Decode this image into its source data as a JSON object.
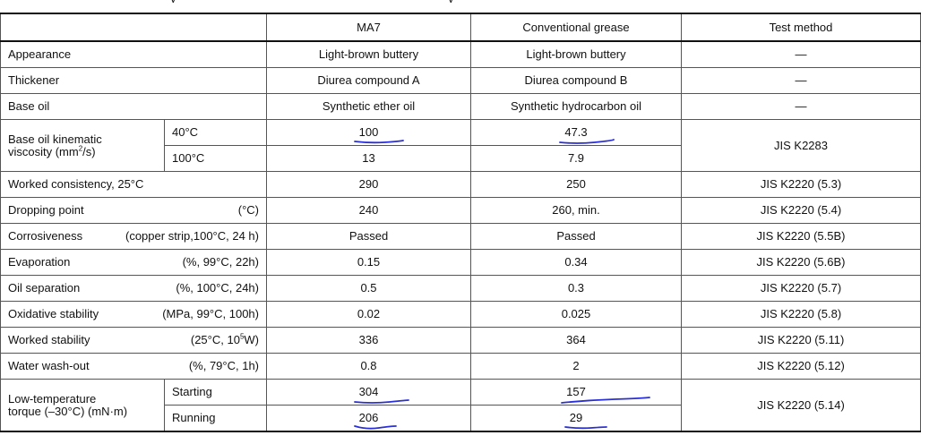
{
  "header_fragment": "y",
  "header_fragment_2": "y",
  "columns": {
    "ma7": "MA7",
    "conventional": "Conventional grease",
    "method": "Test method"
  },
  "rows": {
    "appearance": {
      "label": "Appearance",
      "ma7": "Light-brown buttery",
      "conv": "Light-brown buttery",
      "method": "—"
    },
    "thickener": {
      "label": "Thickener",
      "ma7": "Diurea compound A",
      "conv": "Diurea compound B",
      "method": "—"
    },
    "base_oil": {
      "label": "Base oil",
      "ma7": "Synthetic ether oil",
      "conv": "Synthetic hydrocarbon oil",
      "method": "—"
    },
    "viscosity": {
      "label_line1": "Base oil kinematic",
      "label_line2_pre": "viscosity (mm",
      "label_line2_sup": "2",
      "label_line2_post": "/s)",
      "sub1": "40°C",
      "ma7_1": "100",
      "conv_1": "47.3",
      "sub2": "100°C",
      "ma7_2": "13",
      "conv_2": "7.9",
      "method": "JIS K2283"
    },
    "worked_consistency": {
      "label": "Worked consistency, 25°C",
      "ma7": "290",
      "conv": "250",
      "method": "JIS K2220 (5.3)"
    },
    "dropping_point": {
      "label": "Dropping point",
      "cond": "(°C)",
      "ma7": "240",
      "conv": "260, min.",
      "method": "JIS K2220 (5.4)"
    },
    "corrosiveness": {
      "label": "Corrosiveness",
      "cond": "(copper strip,100°C, 24 h)",
      "ma7": "Passed",
      "conv": "Passed",
      "method": "JIS K2220 (5.5B)"
    },
    "evaporation": {
      "label": "Evaporation",
      "cond": "(%,  99°C, 22h)",
      "ma7": "0.15",
      "conv": "0.34",
      "method": "JIS K2220 (5.6B)"
    },
    "oil_separation": {
      "label": "Oil separation",
      "cond": "(%, 100°C, 24h)",
      "ma7": "0.5",
      "conv": "0.3",
      "method": "JIS K2220 (5.7)"
    },
    "oxidative_stability": {
      "label": "Oxidative stability",
      "cond": "(MPa,  99°C, 100h)",
      "ma7": "0.02",
      "conv": "0.025",
      "method": "JIS K2220 (5.8)"
    },
    "worked_stability": {
      "label": "Worked stability",
      "cond_pre": "(25°C, 10",
      "cond_sup": "5",
      "cond_post": "W)",
      "ma7": "336",
      "conv": "364",
      "method": "JIS K2220 (5.11)"
    },
    "water_washout": {
      "label": "Water wash-out",
      "cond": "(%,  79°C, 1h)",
      "ma7": "0.8",
      "conv": "2",
      "method": "JIS K2220 (5.12)"
    },
    "torque": {
      "label_line1": "Low-temperature",
      "label_line2": "torque (–30°C) (mN·m)",
      "sub1": "Starting",
      "ma7_1": "304",
      "conv_1": "157",
      "sub2": "Running",
      "ma7_2": "206",
      "conv_2": "29",
      "method": "JIS K2220 (5.14)"
    }
  },
  "annotation_color": "#2a2fd6"
}
